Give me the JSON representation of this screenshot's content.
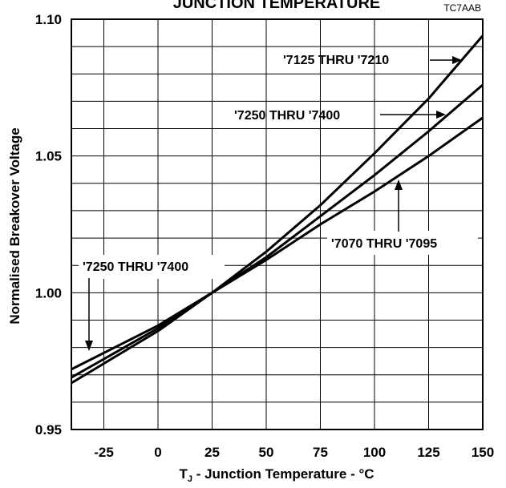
{
  "figure_code": "TC7AAB",
  "chart_data": {
    "type": "line",
    "title": "JUNCTION TEMPERATURE",
    "xlabel_prefix": "T",
    "xlabel_subscript": "J",
    "xlabel_rest": " - Junction Temperature - °C",
    "ylabel": "Normalised Breakover Voltage",
    "xlim": [
      -40,
      150
    ],
    "ylim": [
      0.95,
      1.1
    ],
    "x_ticks": [
      -25,
      0,
      25,
      50,
      75,
      100,
      125,
      150
    ],
    "x_tick_labels": [
      "-25",
      "0",
      "25",
      "50",
      "75",
      "100",
      "125",
      "150"
    ],
    "y_ticks": [
      0.95,
      1.0,
      1.05,
      1.1
    ],
    "y_tick_labels": [
      "0.95",
      "1.00",
      "1.05",
      "1.10"
    ],
    "grid": true,
    "series": [
      {
        "name": "'7125 THRU '7210",
        "x": [
          -40,
          0,
          25,
          50,
          75,
          100,
          125,
          150
        ],
        "y": [
          0.967,
          0.986,
          1.0,
          1.015,
          1.032,
          1.051,
          1.071,
          1.094
        ]
      },
      {
        "name": "'7250 THRU '7400",
        "x": [
          -40,
          0,
          25,
          50,
          75,
          100,
          125,
          150
        ],
        "y": [
          0.969,
          0.987,
          1.0,
          1.013,
          1.028,
          1.043,
          1.059,
          1.076
        ]
      },
      {
        "name": "'7070 THRU '7095",
        "x": [
          -40,
          0,
          25,
          50,
          75,
          100,
          125,
          150
        ],
        "y": [
          0.972,
          0.988,
          1.0,
          1.012,
          1.025,
          1.037,
          1.05,
          1.064
        ]
      }
    ],
    "annotations": [
      {
        "text": "'7125 THRU '7210",
        "series": 0
      },
      {
        "text": "'7250 THRU '7400",
        "series": 1
      },
      {
        "text": "'7070 THRU '7095",
        "series": 2
      },
      {
        "text": "'7250 THRU '7400",
        "series": 1
      }
    ]
  }
}
